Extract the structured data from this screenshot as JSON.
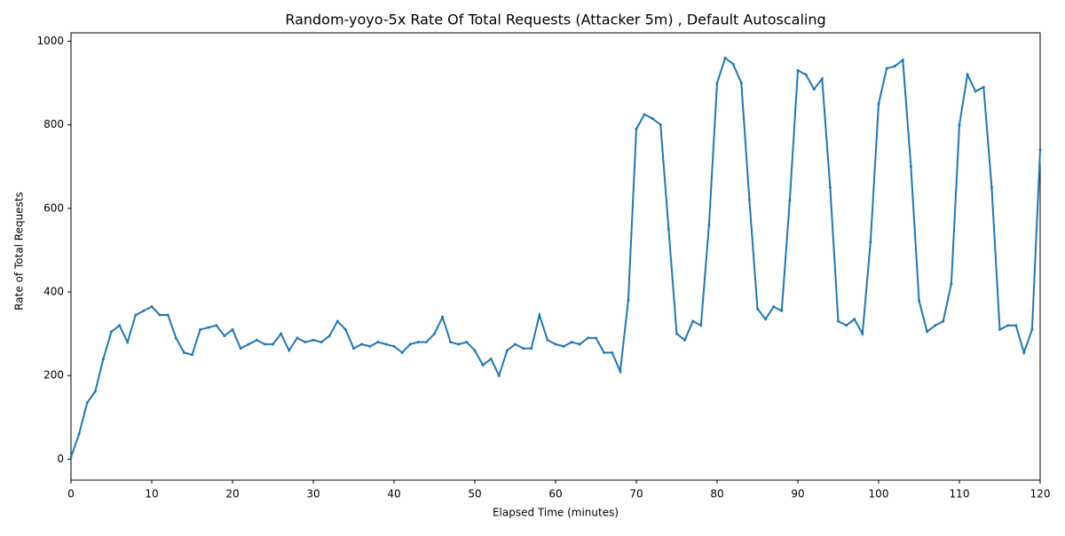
{
  "chart_data": {
    "type": "line",
    "title": "Random-yoyo-5x Rate Of Total Requests (Attacker 5m) , Default Autoscaling",
    "x_label": "Elapsed Time (minutes)",
    "y_label": "Rate of Total Requests",
    "xlim": [
      0,
      120
    ],
    "ylim": [
      -50,
      1020
    ],
    "xticks": [
      0,
      10,
      20,
      30,
      40,
      50,
      60,
      70,
      80,
      90,
      100,
      110,
      120
    ],
    "yticks": [
      0,
      200,
      400,
      600,
      800,
      1000
    ],
    "x": [
      0,
      1,
      2,
      3,
      4,
      5,
      6,
      7,
      8,
      9,
      10,
      11,
      12,
      13,
      14,
      15,
      16,
      17,
      18,
      19,
      20,
      21,
      22,
      23,
      24,
      25,
      26,
      27,
      28,
      29,
      30,
      31,
      32,
      33,
      34,
      35,
      36,
      37,
      38,
      39,
      40,
      41,
      42,
      43,
      44,
      45,
      46,
      47,
      48,
      49,
      50,
      51,
      52,
      53,
      54,
      55,
      56,
      57,
      58,
      59,
      60,
      61,
      62,
      63,
      64,
      65,
      66,
      67,
      68,
      69,
      70,
      71,
      72,
      73,
      74,
      75,
      76,
      77,
      78,
      79,
      80,
      81,
      82,
      83,
      84,
      85,
      86,
      87,
      88,
      89,
      90,
      91,
      92,
      93,
      94,
      95,
      96,
      97,
      98,
      99,
      100,
      101,
      102,
      103,
      104,
      105,
      106,
      107,
      108,
      109,
      110,
      111,
      112,
      113,
      114,
      115,
      116,
      117,
      118,
      119,
      120
    ],
    "series": [
      {
        "name": "Rate of Total Requests",
        "color": "#1f77b4",
        "values": [
          5,
          60,
          135,
          162,
          240,
          305,
          320,
          280,
          345,
          355,
          365,
          345,
          345,
          290,
          255,
          250,
          310,
          315,
          320,
          295,
          310,
          265,
          275,
          285,
          275,
          275,
          300,
          260,
          290,
          280,
          285,
          280,
          295,
          330,
          310,
          265,
          275,
          270,
          280,
          275,
          270,
          255,
          275,
          280,
          280,
          300,
          340,
          280,
          275,
          280,
          260,
          225,
          240,
          200,
          260,
          275,
          265,
          265,
          345,
          285,
          275,
          270,
          280,
          275,
          290,
          290,
          255,
          255,
          210,
          380,
          790,
          825,
          815,
          800,
          550,
          300,
          285,
          330,
          320,
          560,
          900,
          960,
          945,
          900,
          620,
          360,
          335,
          365,
          355,
          620,
          930,
          920,
          885,
          910,
          650,
          330,
          320,
          335,
          300,
          520,
          850,
          935,
          940,
          955,
          700,
          380,
          305,
          320,
          330,
          420,
          800,
          920,
          880,
          890,
          650,
          310,
          320,
          320,
          255,
          310,
          740
        ]
      }
    ]
  }
}
